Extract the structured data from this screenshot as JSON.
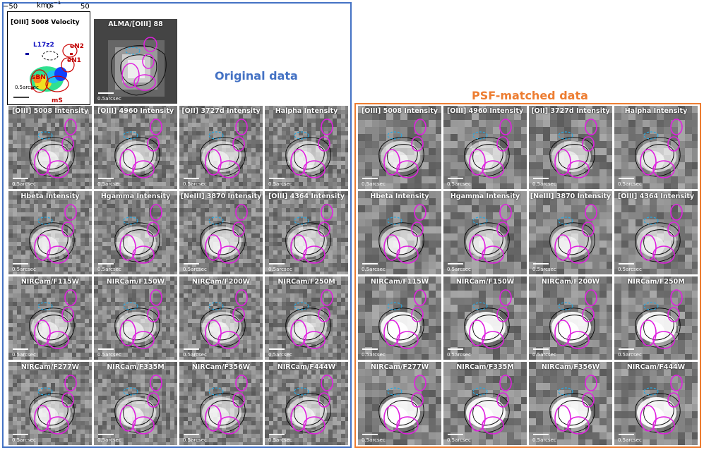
{
  "colorbar": {
    "unit": "km s",
    "unit_exp": "−1",
    "ticks": [
      "−50",
      "0",
      "50"
    ]
  },
  "velocity": {
    "title": "[OIII] 5008 Velocity",
    "labels": {
      "l17z2": "L17z2",
      "en2": "eN2",
      "en1": "eN1",
      "sbn": "sBN",
      "ms": "mS"
    },
    "scale": "0.5arcsec"
  },
  "alma": {
    "title": "ALMA/[OIII] 88",
    "scale": "0.5arcsec"
  },
  "original_title": "Original data",
  "psf_title": "PSF-matched data",
  "scale_label": "0.5arcsec",
  "rows": [
    [
      "[OIII] 5008 Intensity",
      "[OIII] 4960 Intensity",
      "[OII] 3727d Intensity",
      "Halpha Intensity"
    ],
    [
      "Hbeta Intensity",
      "Hgamma Intensity",
      "[NeIII] 3870 Intensity",
      "[OIII] 4364 Intensity"
    ],
    [
      "NIRCam/F115W",
      "NIRCam/F150W",
      "NIRCam/F200W",
      "NIRCam/F250M"
    ],
    [
      "NIRCam/F277W",
      "NIRCam/F335M",
      "NIRCam/F356W",
      "NIRCam/F444W"
    ]
  ],
  "colors": {
    "original": "#4472c4",
    "psf": "#ed7d31",
    "magenta": "#e020e0",
    "cyan": "#29a8e0"
  }
}
